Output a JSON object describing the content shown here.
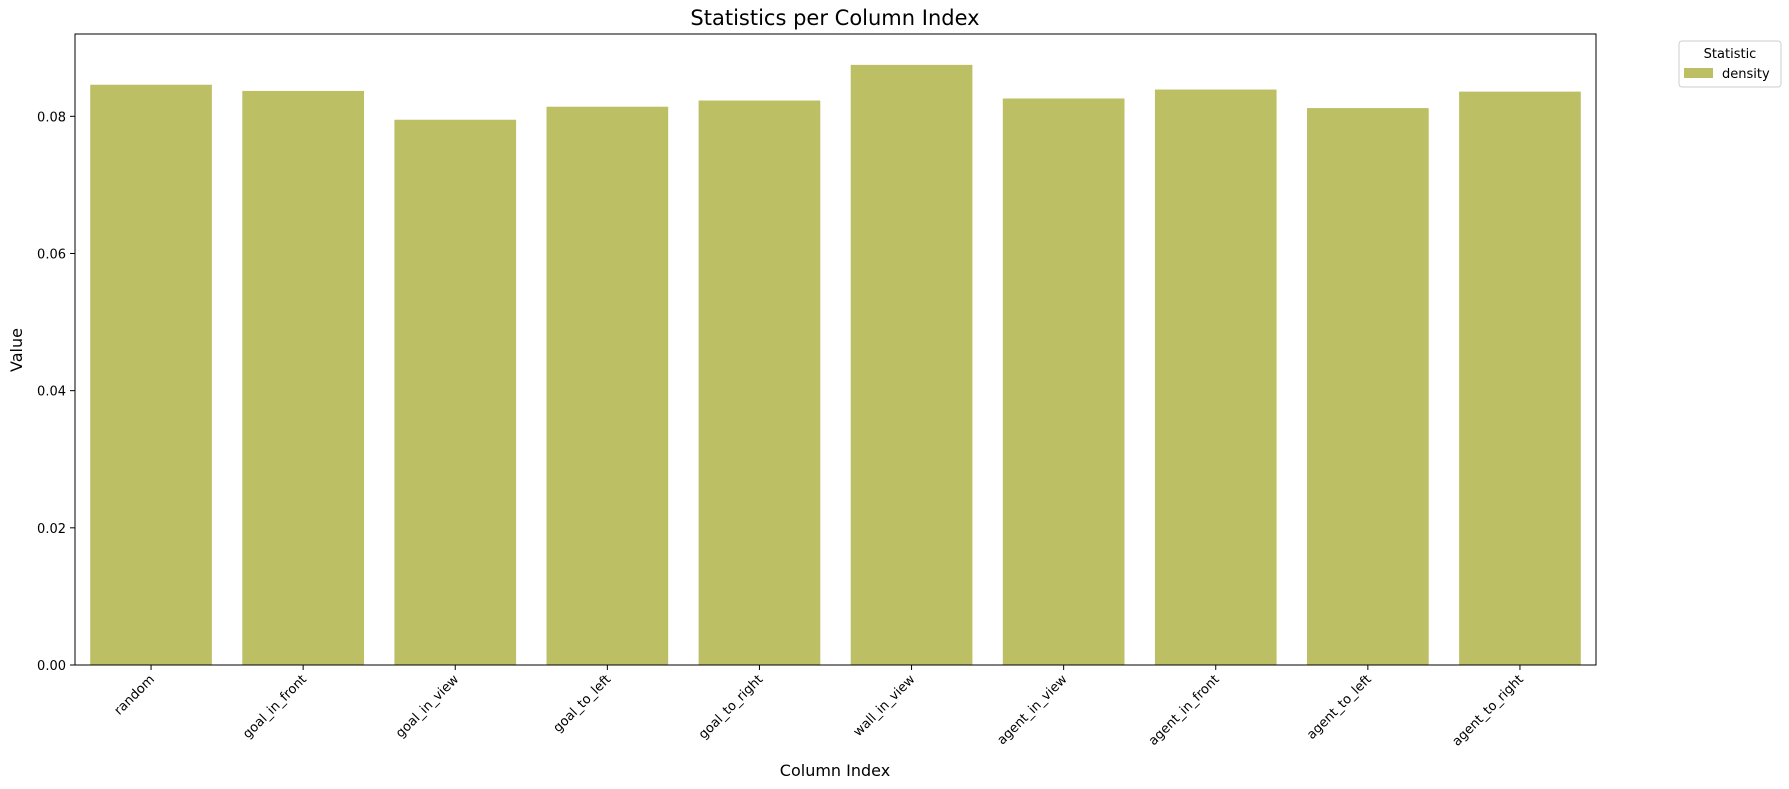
{
  "chart_data": {
    "type": "bar",
    "title": "Statistics per Column Index",
    "xlabel": "Column Index",
    "ylabel": "Value",
    "categories": [
      "random",
      "goal_in_front",
      "goal_in_view",
      "goal_to_left",
      "goal_to_right",
      "wall_in_view",
      "agent_in_view",
      "agent_in_front",
      "agent_to_left",
      "agent_to_right"
    ],
    "series": [
      {
        "name": "density",
        "color": "#bcbf63",
        "values": [
          0.0846,
          0.0837,
          0.0795,
          0.0814,
          0.0823,
          0.0875,
          0.0826,
          0.0839,
          0.0812,
          0.0836
        ]
      }
    ],
    "ylim": [
      0,
      0.092
    ],
    "yticks": [
      0.0,
      0.02,
      0.04,
      0.06,
      0.08
    ],
    "ytick_labels": [
      "0.00",
      "0.02",
      "0.04",
      "0.06",
      "0.08"
    ],
    "grid": false,
    "legend": {
      "title": "Statistic",
      "placement": "outside-top-right"
    }
  }
}
